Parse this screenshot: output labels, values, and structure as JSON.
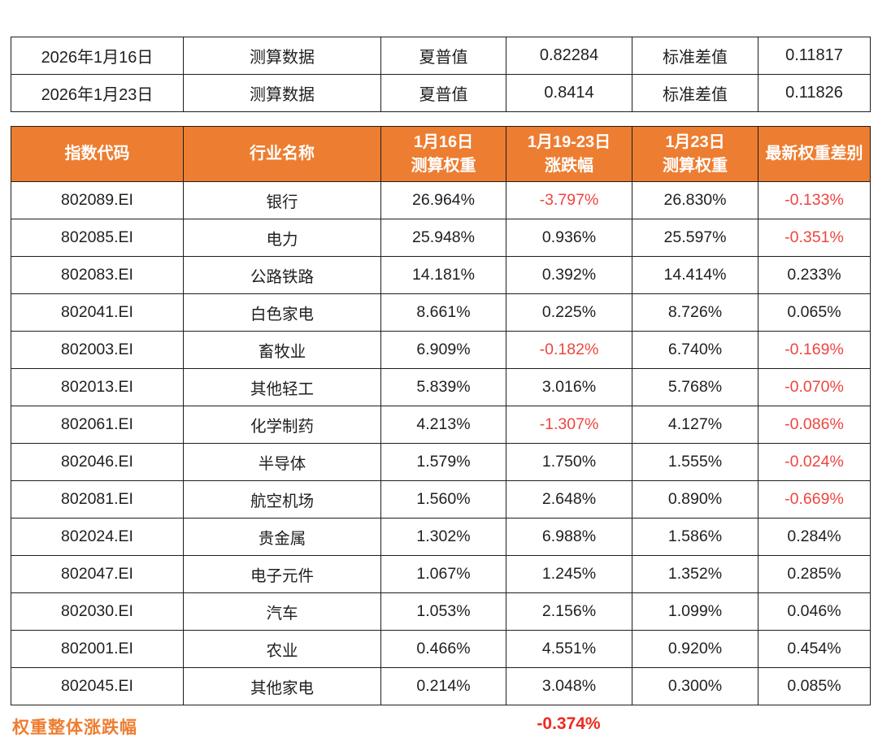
{
  "colors": {
    "header_bg": "#ED7D31",
    "negative_text": "#EE453F",
    "footer_label_color": "#ED7D31",
    "body_text": "#1F1F1F",
    "border": "#1D1D1D"
  },
  "summary": {
    "rows": [
      {
        "date": "2026年1月16日",
        "type": "测算数据",
        "sharpe_label": "夏普值",
        "sharpe_value": "0.82284",
        "std_label": "标准差值",
        "std_value": "0.11817"
      },
      {
        "date": "2026年1月23日",
        "type": "测算数据",
        "sharpe_label": "夏普值",
        "sharpe_value": "0.8414",
        "std_label": "标准差值",
        "std_value": "0.11826"
      }
    ]
  },
  "weights": {
    "headers": {
      "code": "指数代码",
      "industry": "行业名称",
      "w_prev": "1月16日\n测算权重",
      "chg": "1月19-23日\n涨跌幅",
      "w_new": "1月23日\n测算权重",
      "diff": "最新权重差别"
    },
    "rows": [
      {
        "code": "802089.EI",
        "industry": "银行",
        "w_prev": "26.964%",
        "chg": "-3.797%",
        "w_new": "26.830%",
        "diff": "-0.133%"
      },
      {
        "code": "802085.EI",
        "industry": "电力",
        "w_prev": "25.948%",
        "chg": "0.936%",
        "w_new": "25.597%",
        "diff": "-0.351%"
      },
      {
        "code": "802083.EI",
        "industry": "公路铁路",
        "w_prev": "14.181%",
        "chg": "0.392%",
        "w_new": "14.414%",
        "diff": "0.233%"
      },
      {
        "code": "802041.EI",
        "industry": "白色家电",
        "w_prev": "8.661%",
        "chg": "0.225%",
        "w_new": "8.726%",
        "diff": "0.065%"
      },
      {
        "code": "802003.EI",
        "industry": "畜牧业",
        "w_prev": "6.909%",
        "chg": "-0.182%",
        "w_new": "6.740%",
        "diff": "-0.169%"
      },
      {
        "code": "802013.EI",
        "industry": "其他轻工",
        "w_prev": "5.839%",
        "chg": "3.016%",
        "w_new": "5.768%",
        "diff": "-0.070%"
      },
      {
        "code": "802061.EI",
        "industry": "化学制药",
        "w_prev": "4.213%",
        "chg": "-1.307%",
        "w_new": "4.127%",
        "diff": "-0.086%"
      },
      {
        "code": "802046.EI",
        "industry": "半导体",
        "w_prev": "1.579%",
        "chg": "1.750%",
        "w_new": "1.555%",
        "diff": "-0.024%"
      },
      {
        "code": "802081.EI",
        "industry": "航空机场",
        "w_prev": "1.560%",
        "chg": "2.648%",
        "w_new": "0.890%",
        "diff": "-0.669%"
      },
      {
        "code": "802024.EI",
        "industry": "贵金属",
        "w_prev": "1.302%",
        "chg": "6.988%",
        "w_new": "1.586%",
        "diff": "0.284%"
      },
      {
        "code": "802047.EI",
        "industry": "电子元件",
        "w_prev": "1.067%",
        "chg": "1.245%",
        "w_new": "1.352%",
        "diff": "0.285%"
      },
      {
        "code": "802030.EI",
        "industry": "汽车",
        "w_prev": "1.053%",
        "chg": "2.156%",
        "w_new": "1.099%",
        "diff": "0.046%"
      },
      {
        "code": "802001.EI",
        "industry": "农业",
        "w_prev": "0.466%",
        "chg": "4.551%",
        "w_new": "0.920%",
        "diff": "0.454%"
      },
      {
        "code": "802045.EI",
        "industry": "其他家电",
        "w_prev": "0.214%",
        "chg": "3.048%",
        "w_new": "0.300%",
        "diff": "0.085%"
      }
    ]
  },
  "footer": {
    "label": "权重整体涨跌幅",
    "value": "-0.374%"
  }
}
